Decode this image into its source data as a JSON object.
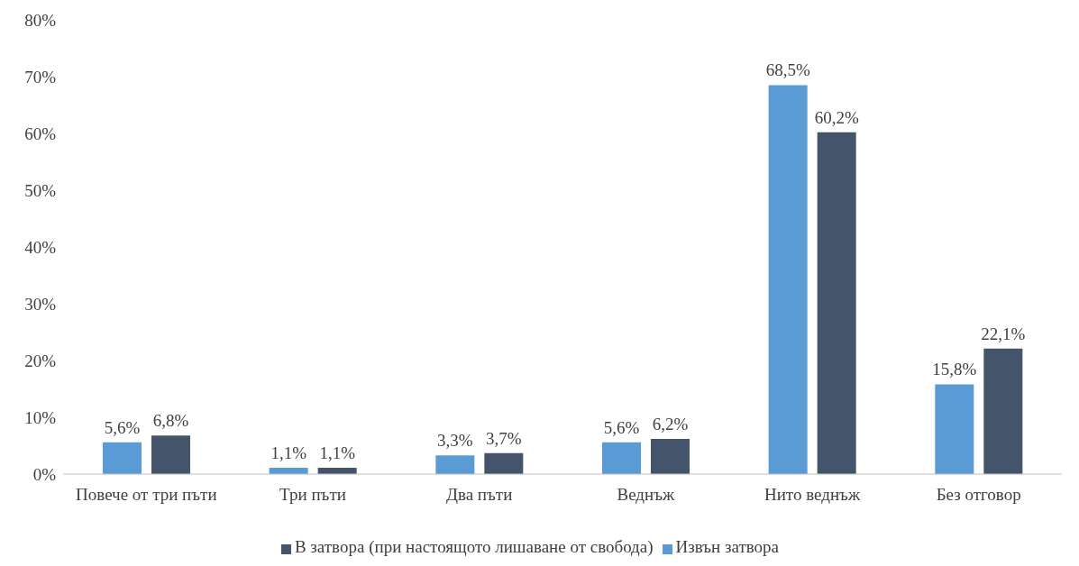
{
  "chart_data": {
    "type": "bar",
    "categories": [
      "Повече от три пъти",
      "Три пъти",
      "Два пъти",
      "Веднъж",
      "Нито веднъж",
      "Без отговор"
    ],
    "series": [
      {
        "name": "Извън затвора",
        "color": "#5b9bd5",
        "values": [
          5.6,
          1.1,
          3.3,
          5.6,
          68.5,
          15.8
        ],
        "value_labels": [
          "5,6%",
          "1,1%",
          "3,3%",
          "5,6%",
          "68,5%",
          "15,8%"
        ]
      },
      {
        "name": "В затвора (при настоящото лишаване от свобода)",
        "color": "#44546a",
        "values": [
          6.8,
          1.1,
          3.7,
          6.2,
          60.2,
          22.1
        ],
        "value_labels": [
          "6,8%",
          "1,1%",
          "3,7%",
          "6,2%",
          "60,2%",
          "22,1%"
        ]
      }
    ],
    "ylim": [
      0,
      80
    ],
    "yticks": [
      {
        "value": 0,
        "label": "0%"
      },
      {
        "value": 10,
        "label": "10%"
      },
      {
        "value": 20,
        "label": "20%"
      },
      {
        "value": 30,
        "label": "30%"
      },
      {
        "value": 40,
        "label": "40%"
      },
      {
        "value": 50,
        "label": "50%"
      },
      {
        "value": 60,
        "label": "60%"
      },
      {
        "value": 70,
        "label": "70%"
      },
      {
        "value": 80,
        "label": "80%"
      }
    ],
    "grid": false,
    "legend": "bottom"
  }
}
